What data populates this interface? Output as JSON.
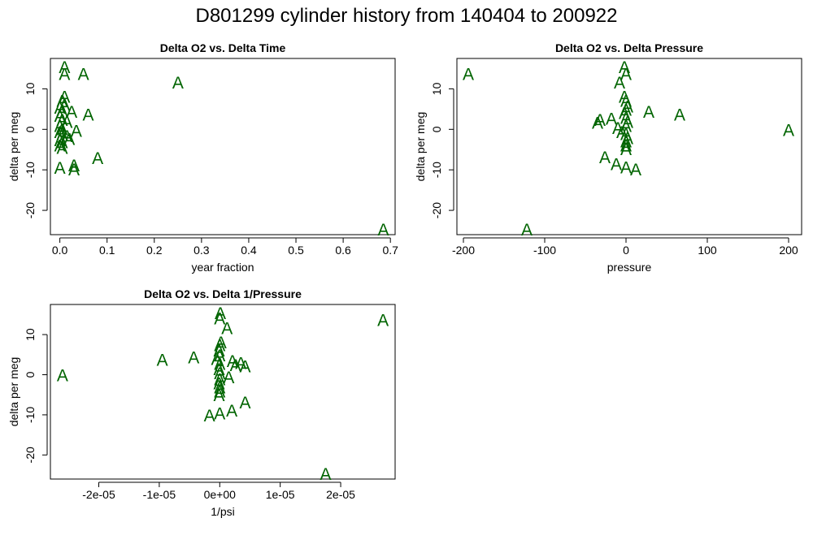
{
  "main_title": "D801299   cylinder history from  140404  to  200922",
  "colors": {
    "points": "#006400",
    "axis": "#000000"
  },
  "chart_data": [
    {
      "type": "scatter",
      "title": "Delta O2 vs. Delta Time",
      "xlabel": "year fraction",
      "ylabel": "delta per meg",
      "marker": "A",
      "xlim": [
        -0.02,
        0.71
      ],
      "ylim": [
        -26,
        17.5
      ],
      "xticks": [
        0.0,
        0.1,
        0.2,
        0.3,
        0.4,
        0.5,
        0.6,
        0.7
      ],
      "xtick_labels": [
        "0.0",
        "0.1",
        "0.2",
        "0.3",
        "0.4",
        "0.5",
        "0.6",
        "0.7"
      ],
      "yticks": [
        -20,
        -10,
        0,
        10
      ],
      "ytick_labels": [
        "-20",
        "-10",
        "0",
        "10"
      ],
      "points": [
        [
          0.01,
          15.5
        ],
        [
          0.01,
          13.8
        ],
        [
          0.05,
          13.8
        ],
        [
          0.25,
          11.7
        ],
        [
          0.01,
          8.2
        ],
        [
          0.005,
          7.2
        ],
        [
          0.01,
          6.2
        ],
        [
          0.0,
          5.5
        ],
        [
          0.005,
          4.8
        ],
        [
          0.025,
          4.5
        ],
        [
          0.06,
          3.8
        ],
        [
          0.0,
          3.5
        ],
        [
          0.005,
          2.5
        ],
        [
          0.015,
          2.0
        ],
        [
          0.0,
          1.0
        ],
        [
          0.005,
          0.2
        ],
        [
          0.035,
          -0.2
        ],
        [
          0.0,
          -0.5
        ],
        [
          0.005,
          -1.0
        ],
        [
          0.015,
          -1.5
        ],
        [
          0.02,
          -2.2
        ],
        [
          0.0,
          -2.5
        ],
        [
          0.005,
          -3.0
        ],
        [
          0.0,
          -3.8
        ],
        [
          0.005,
          -4.5
        ],
        [
          0.08,
          -7.0
        ],
        [
          0.03,
          -8.8
        ],
        [
          0.0,
          -9.4
        ],
        [
          0.03,
          -9.8
        ],
        [
          0.685,
          -24.6
        ]
      ]
    },
    {
      "type": "scatter",
      "title": "Delta O2 vs. Delta Pressure",
      "xlabel": "pressure",
      "ylabel": "delta per meg",
      "marker": "A",
      "xlim": [
        -208,
        216
      ],
      "ylim": [
        -26,
        17.5
      ],
      "xticks": [
        -200,
        -100,
        0,
        100,
        200
      ],
      "xtick_labels": [
        "-200",
        "-100",
        "0",
        "100",
        "200"
      ],
      "yticks": [
        -20,
        -10,
        0,
        10
      ],
      "ytick_labels": [
        "-20",
        "-10",
        "0",
        "10"
      ],
      "points": [
        [
          -194,
          13.8
        ],
        [
          -2,
          15.5
        ],
        [
          0,
          13.8
        ],
        [
          -8,
          11.7
        ],
        [
          -2,
          8.2
        ],
        [
          0,
          7.2
        ],
        [
          2,
          5.8
        ],
        [
          0,
          5.0
        ],
        [
          28,
          4.5
        ],
        [
          66,
          3.8
        ],
        [
          -2,
          4.2
        ],
        [
          0,
          3.0
        ],
        [
          -18,
          2.8
        ],
        [
          -32,
          2.5
        ],
        [
          -35,
          1.8
        ],
        [
          2,
          2.0
        ],
        [
          -10,
          0.5
        ],
        [
          0,
          1.0
        ],
        [
          200,
          0.0
        ],
        [
          -5,
          -0.5
        ],
        [
          0,
          -1.0
        ],
        [
          2,
          -2.0
        ],
        [
          0,
          -2.8
        ],
        [
          0,
          -3.8
        ],
        [
          0,
          -4.8
        ],
        [
          -26,
          -6.8
        ],
        [
          -12,
          -8.5
        ],
        [
          0,
          -9.3
        ],
        [
          12,
          -9.8
        ],
        [
          -122,
          -24.6
        ]
      ]
    },
    {
      "type": "scatter",
      "title": "Delta O2 vs. Delta 1/Pressure",
      "xlabel": "1/psi",
      "ylabel": "delta per meg",
      "marker": "A",
      "xlim": [
        -2.8e-05,
        2.9e-05
      ],
      "ylim": [
        -26,
        17.5
      ],
      "xticks": [
        -2e-05,
        -1e-05,
        0,
        1e-05,
        2e-05
      ],
      "xtick_labels": [
        "-2e-05",
        "-1e-05",
        "0e+00",
        "1e-05",
        "2e-05"
      ],
      "yticks": [
        -20,
        -10,
        0,
        10
      ],
      "ytick_labels": [
        "-20",
        "-10",
        "0",
        "10"
      ],
      "points": [
        [
          2.7e-05,
          13.8
        ],
        [
          1e-07,
          15.5
        ],
        [
          0,
          14.2
        ],
        [
          1.2e-06,
          11.7
        ],
        [
          2e-07,
          8.2
        ],
        [
          0,
          7.5
        ],
        [
          -1e-07,
          6.2
        ],
        [
          0,
          5.0
        ],
        [
          -4.3e-06,
          4.5
        ],
        [
          -9.5e-06,
          3.8
        ],
        [
          -5e-07,
          4.0
        ],
        [
          2.1e-06,
          3.5
        ],
        [
          3.5e-06,
          3.0
        ],
        [
          4.2e-06,
          2.2
        ],
        [
          2.6e-06,
          2.5
        ],
        [
          0,
          2.8
        ],
        [
          -1e-07,
          1.5
        ],
        [
          0,
          0.5
        ],
        [
          1.5e-06,
          -0.5
        ],
        [
          -2.6e-05,
          0.0
        ],
        [
          0,
          -1.0
        ],
        [
          -1e-07,
          -2.0
        ],
        [
          0,
          -3.0
        ],
        [
          0,
          -4.0
        ],
        [
          -1e-07,
          -5.0
        ],
        [
          4.2e-06,
          -6.8
        ],
        [
          2e-06,
          -8.8
        ],
        [
          0,
          -9.5
        ],
        [
          -1.7e-06,
          -10.0
        ],
        [
          1.75e-05,
          -24.6
        ]
      ]
    }
  ]
}
